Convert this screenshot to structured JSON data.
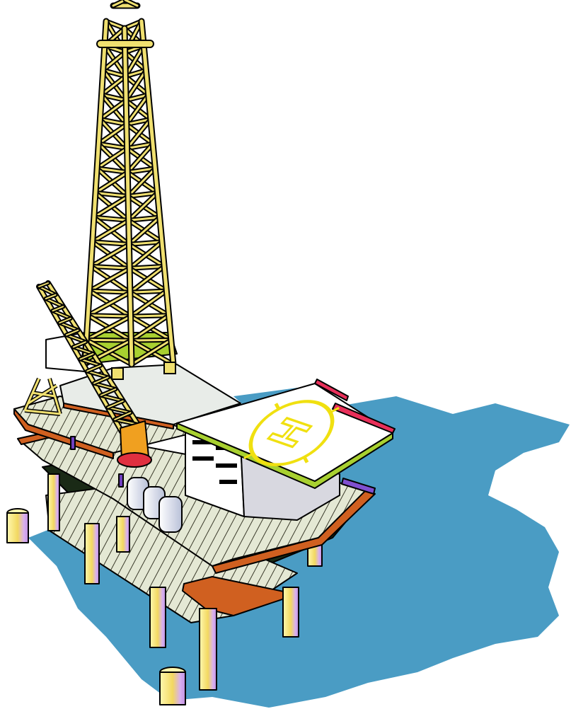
{
  "helipad": {
    "marking": "H"
  }
}
